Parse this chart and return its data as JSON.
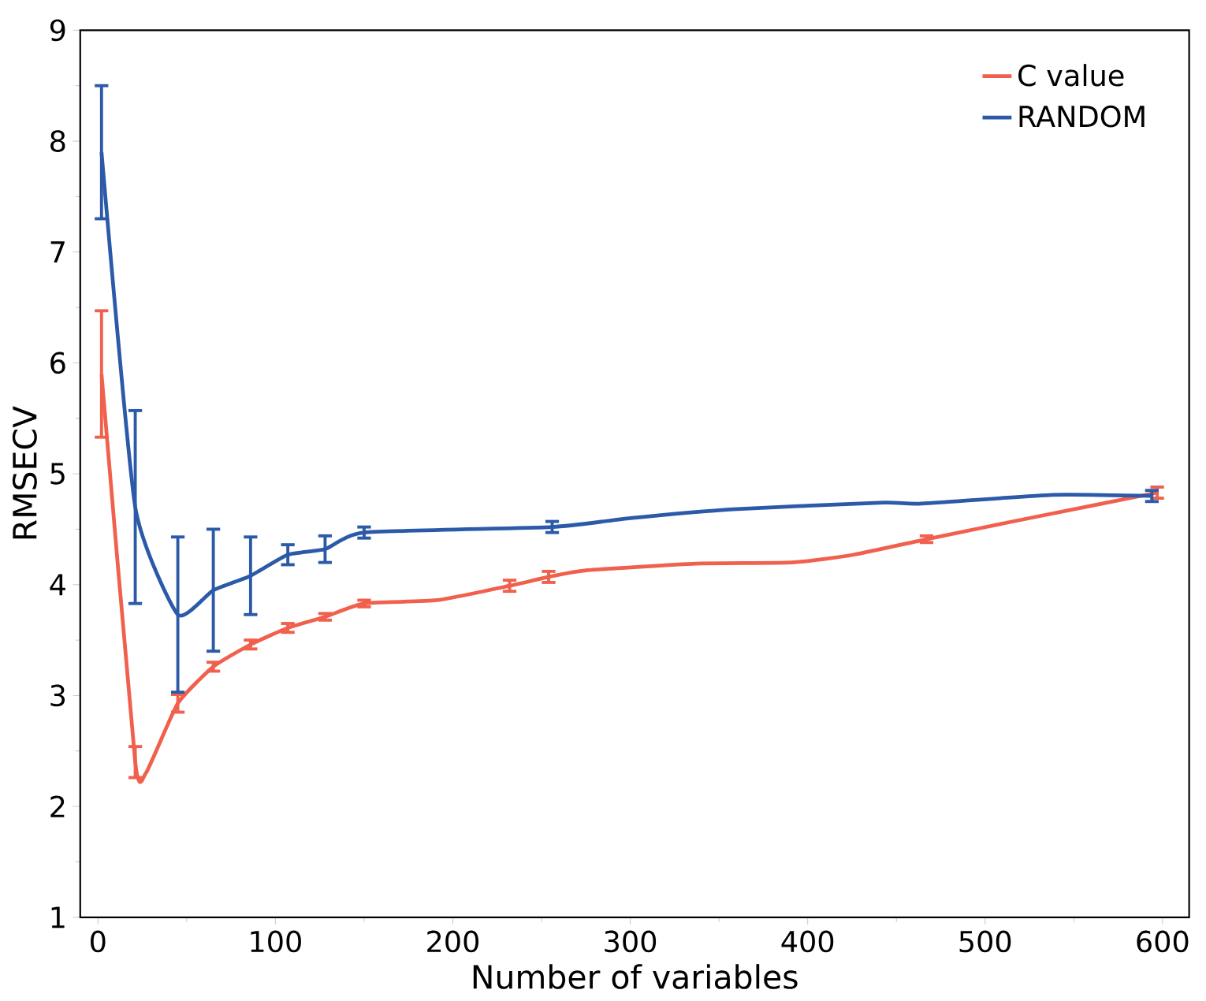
{
  "chart_data": {
    "type": "line",
    "xlabel": "Number of variables",
    "ylabel": "RMSECV",
    "xlim": [
      -10,
      615
    ],
    "ylim": [
      1,
      9
    ],
    "xticks": [
      0,
      100,
      200,
      300,
      400,
      500,
      600
    ],
    "yticks": [
      1,
      2,
      3,
      4,
      5,
      6,
      7,
      8,
      9
    ],
    "grid": false,
    "legend": "top right",
    "marker": "none",
    "line_style": "solid",
    "series": [
      {
        "name": "C value",
        "color": "#f0604d",
        "x": [
          2,
          21,
          27,
          45,
          65,
          86,
          107,
          128,
          150,
          191,
          232,
          254,
          276,
          337,
          391,
          426,
          467,
          528,
          597
        ],
        "values": [
          5.9,
          2.4,
          2.3,
          2.93,
          3.26,
          3.46,
          3.61,
          3.71,
          3.83,
          3.86,
          3.99,
          4.07,
          4.13,
          4.19,
          4.2,
          4.27,
          4.41,
          4.61,
          4.83
        ],
        "errors": [
          0.57,
          0.14,
          null,
          0.08,
          0.04,
          0.04,
          0.04,
          0.03,
          0.03,
          null,
          0.05,
          0.05,
          null,
          null,
          null,
          null,
          0.03,
          null,
          0.05
        ]
      },
      {
        "name": "RANDOM",
        "color": "#2b5aa8",
        "x": [
          2,
          21,
          45,
          65,
          86,
          107,
          128,
          150,
          256,
          300,
          358,
          443,
          463,
          538,
          594
        ],
        "values": [
          7.9,
          4.7,
          3.73,
          3.95,
          4.08,
          4.27,
          4.32,
          4.47,
          4.52,
          4.6,
          4.68,
          4.74,
          4.73,
          4.81,
          4.8
        ],
        "errors": [
          0.6,
          0.87,
          0.7,
          0.55,
          0.35,
          0.09,
          0.12,
          0.05,
          0.05,
          null,
          null,
          null,
          null,
          null,
          0.05
        ]
      }
    ]
  }
}
